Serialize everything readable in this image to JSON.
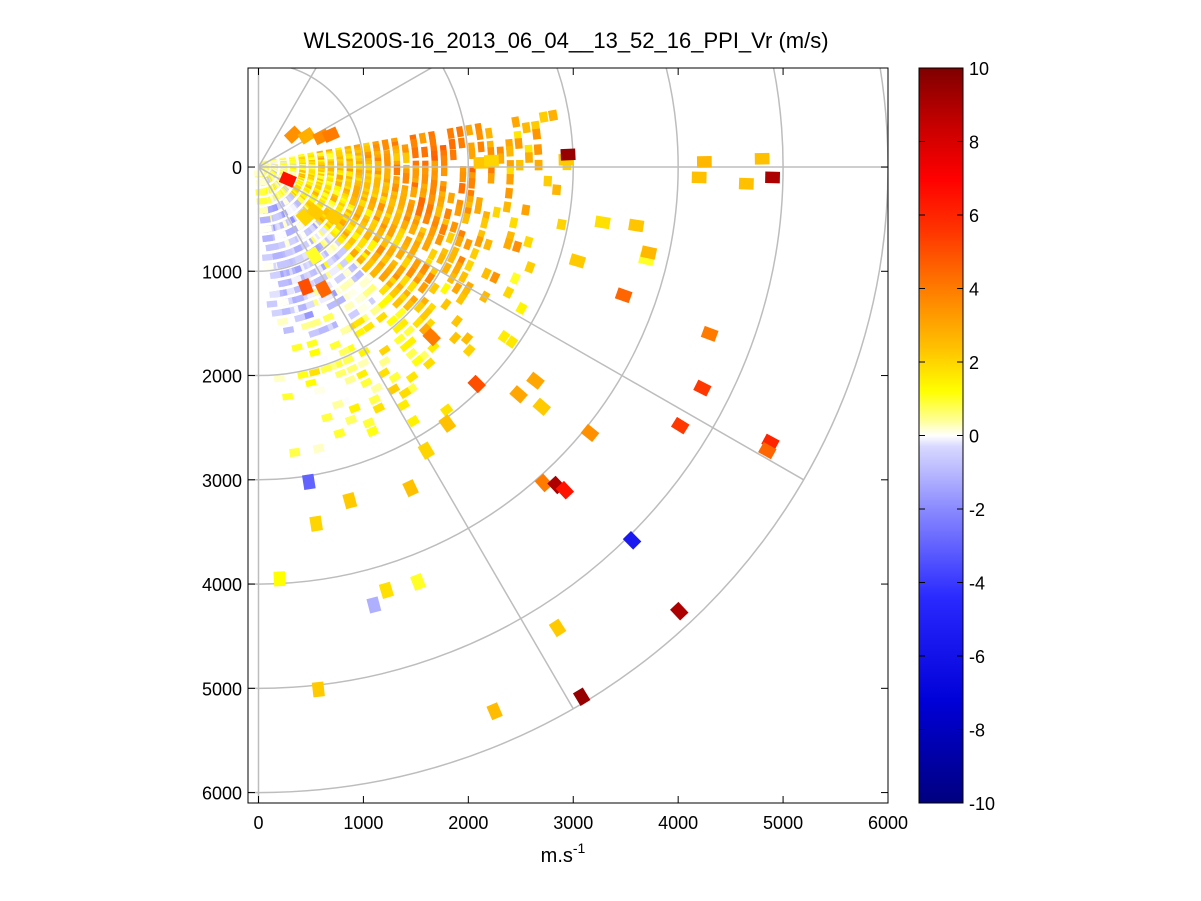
{
  "chart_data": {
    "type": "heatmap",
    "subtype": "polar-sector-ppi",
    "title": "WLS200S-16_2013_06_04__13_52_16_PPI_Vr (m/s)",
    "xlabel_base": "m.s",
    "xlabel_sup": "-1",
    "ylabel": "",
    "xlim": [
      -100,
      6000
    ],
    "ylim": [
      -950,
      6100
    ],
    "y_axis_reversed": true,
    "xticks": [
      0,
      1000,
      2000,
      3000,
      4000,
      5000,
      6000
    ],
    "xtick_labels": [
      "0",
      "1000",
      "2000",
      "3000",
      "4000",
      "5000",
      "6000"
    ],
    "yticks": [
      0,
      1000,
      2000,
      3000,
      4000,
      5000,
      6000
    ],
    "ytick_labels": [
      "0",
      "1000",
      "2000",
      "3000",
      "4000",
      "5000",
      "6000"
    ],
    "polar_grid": {
      "range_rings": [
        1000,
        2000,
        3000,
        4000,
        5000,
        6000
      ],
      "spokes_deg": [
        -60,
        -30,
        0,
        30,
        60
      ],
      "spoke_length": 6000
    },
    "colorbar": {
      "min": -10,
      "max": 10,
      "ticks": [
        -10,
        -8,
        -6,
        -4,
        -2,
        0,
        2,
        4,
        6,
        8,
        10
      ],
      "tick_labels": [
        "-10",
        "-8",
        "-6",
        "-4",
        "-2",
        "0",
        "2",
        "4",
        "6",
        "8",
        "10"
      ],
      "colormap": "blue-white-yellow-red"
    },
    "scan": {
      "azimuth_range_deg": [
        -10,
        85
      ],
      "azimuth_note": "degrees clockwise from +x axis (downward in display)",
      "range_gate_m": 100,
      "dense_range_m": [
        0,
        3000
      ]
    },
    "sparse_points": [
      {
        "x": 330,
        "y": -310,
        "v": 3.5
      },
      {
        "x": 460,
        "y": -300,
        "v": 2.8
      },
      {
        "x": 600,
        "y": -290,
        "v": 3.6
      },
      {
        "x": 690,
        "y": -310,
        "v": 4.0
      },
      {
        "x": 2120,
        "y": -40,
        "v": 2.3
      },
      {
        "x": 2220,
        "y": -60,
        "v": 2.0
      },
      {
        "x": 2930,
        "y": -70,
        "v": 2.2
      },
      {
        "x": 2950,
        "y": -120,
        "v": 9.5
      },
      {
        "x": 280,
        "y": 120,
        "v": 6.5
      },
      {
        "x": 440,
        "y": 480,
        "v": 2.0
      },
      {
        "x": 540,
        "y": 430,
        "v": 2.2
      },
      {
        "x": 720,
        "y": 480,
        "v": 2.2
      },
      {
        "x": 530,
        "y": 850,
        "v": 1.0
      },
      {
        "x": 450,
        "y": 1150,
        "v": 5.0
      },
      {
        "x": 620,
        "y": 1170,
        "v": 4.5
      },
      {
        "x": 1650,
        "y": 1630,
        "v": 4.0
      },
      {
        "x": 2080,
        "y": 2080,
        "v": 5.0
      },
      {
        "x": 3160,
        "y": 2550,
        "v": 3.5
      },
      {
        "x": 4020,
        "y": 2480,
        "v": 5.5
      },
      {
        "x": 2640,
        "y": 2050,
        "v": 3.0
      },
      {
        "x": 2720,
        "y": 3030,
        "v": 4.0
      },
      {
        "x": 2840,
        "y": 3050,
        "v": 9.0
      },
      {
        "x": 2920,
        "y": 3100,
        "v": 6.5
      },
      {
        "x": 3560,
        "y": 3580,
        "v": -5.5
      },
      {
        "x": 4010,
        "y": 4260,
        "v": 9.0
      },
      {
        "x": 3080,
        "y": 5080,
        "v": 9.5
      },
      {
        "x": 2850,
        "y": 4420,
        "v": 2.2
      },
      {
        "x": 2250,
        "y": 5220,
        "v": 2.5
      },
      {
        "x": 570,
        "y": 5010,
        "v": 2.2
      },
      {
        "x": 1220,
        "y": 4060,
        "v": 1.8
      },
      {
        "x": 1520,
        "y": 3980,
        "v": 1.0
      },
      {
        "x": 1100,
        "y": 4200,
        "v": -1.2
      },
      {
        "x": 200,
        "y": 3950,
        "v": 1.2
      },
      {
        "x": 550,
        "y": 3420,
        "v": 2.0
      },
      {
        "x": 480,
        "y": 3020,
        "v": -3.0
      },
      {
        "x": 1450,
        "y": 3080,
        "v": 2.4
      },
      {
        "x": 870,
        "y": 3200,
        "v": 2.2
      },
      {
        "x": 1600,
        "y": 2720,
        "v": 2.0
      },
      {
        "x": 1800,
        "y": 2460,
        "v": 2.4
      },
      {
        "x": 2700,
        "y": 2300,
        "v": 2.2
      },
      {
        "x": 2480,
        "y": 2180,
        "v": 3.0
      },
      {
        "x": 4650,
        "y": 160,
        "v": 2.4
      },
      {
        "x": 4200,
        "y": 100,
        "v": 2.4
      },
      {
        "x": 4900,
        "y": 100,
        "v": 9.0
      },
      {
        "x": 4800,
        "y": -80,
        "v": 2.4
      },
      {
        "x": 4250,
        "y": -50,
        "v": 2.6
      },
      {
        "x": 3280,
        "y": 530,
        "v": 1.8
      },
      {
        "x": 3600,
        "y": 560,
        "v": 2.3
      },
      {
        "x": 3700,
        "y": 880,
        "v": 1.0
      },
      {
        "x": 3720,
        "y": 820,
        "v": 2.6
      },
      {
        "x": 3480,
        "y": 1230,
        "v": 4.5
      },
      {
        "x": 3040,
        "y": 900,
        "v": 2.2
      },
      {
        "x": 4300,
        "y": 1600,
        "v": 4.0
      },
      {
        "x": 4230,
        "y": 2120,
        "v": 5.5
      },
      {
        "x": 4880,
        "y": 2640,
        "v": 6.0
      },
      {
        "x": 4850,
        "y": 2720,
        "v": 4.5
      }
    ]
  },
  "figure_title": "WLS200S-16_2013_06_04__13_52_16_PPI_Vr (m/s)"
}
